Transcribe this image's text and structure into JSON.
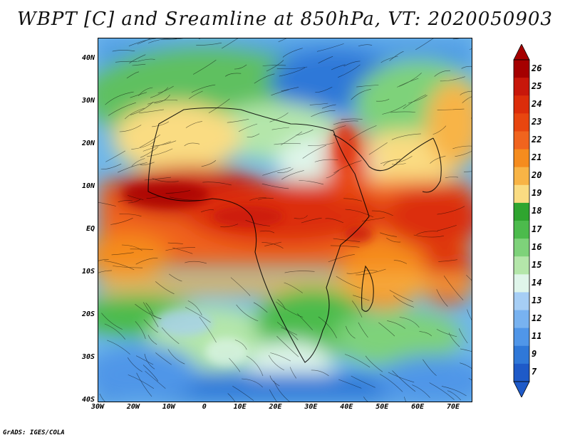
{
  "title": "WBPT [C] and Sreamline at 850hPa, VT: 2020050903",
  "credit": "GrADS: IGES/COLA",
  "map": {
    "variable": "Wet-bulb potential temperature",
    "units": "C",
    "level": "850hPa",
    "valid_time": "2020050903",
    "lat_range": [
      -40,
      45
    ],
    "lon_range": [
      -30,
      75
    ],
    "lat_ticks": [
      {
        "value": 40,
        "label": "40N"
      },
      {
        "value": 30,
        "label": "30N"
      },
      {
        "value": 20,
        "label": "20N"
      },
      {
        "value": 10,
        "label": "10N"
      },
      {
        "value": 0,
        "label": "EQ"
      },
      {
        "value": -10,
        "label": "10S"
      },
      {
        "value": -20,
        "label": "20S"
      },
      {
        "value": -30,
        "label": "30S"
      },
      {
        "value": -40,
        "label": "40S"
      }
    ],
    "lon_ticks": [
      {
        "value": -30,
        "label": "30W"
      },
      {
        "value": -20,
        "label": "20W"
      },
      {
        "value": -10,
        "label": "10W"
      },
      {
        "value": 0,
        "label": "0"
      },
      {
        "value": 10,
        "label": "10E"
      },
      {
        "value": 20,
        "label": "20E"
      },
      {
        "value": 30,
        "label": "30E"
      },
      {
        "value": 40,
        "label": "40E"
      },
      {
        "value": 50,
        "label": "50E"
      },
      {
        "value": 60,
        "label": "60E"
      },
      {
        "value": 70,
        "label": "70E"
      }
    ]
  },
  "colorbar": {
    "labels": [
      "26",
      "25",
      "24",
      "23",
      "22",
      "21",
      "20",
      "19",
      "18",
      "17",
      "16",
      "15",
      "14",
      "13",
      "12",
      "11",
      "9",
      "7"
    ],
    "colors": [
      "#a50000",
      "#c8170a",
      "#dc2d0a",
      "#e8460f",
      "#f0641e",
      "#f58c1e",
      "#f8b446",
      "#fadc82",
      "#2fa52f",
      "#4cbb4c",
      "#7ed27a",
      "#b4e6aa",
      "#dff5ea",
      "#a6cef5",
      "#78b2f0",
      "#5096e8",
      "#2f78d8",
      "#1e5ac8"
    ]
  }
}
